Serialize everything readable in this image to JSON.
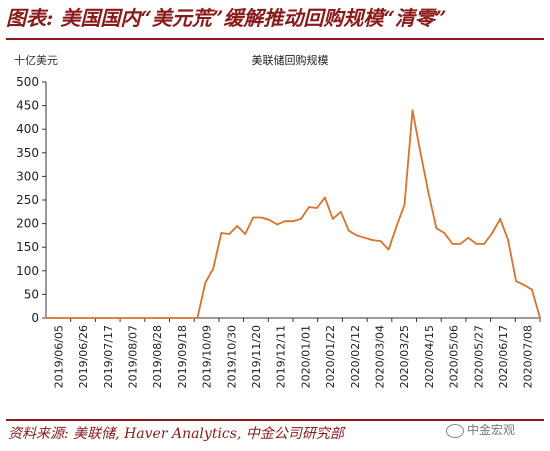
{
  "header": {
    "title": "图表: 美国国内“美元荒”缓解推动回购规模“清零”"
  },
  "footer": {
    "source": "资料来源: 美联储, Haver Analytics, 中金公司研究部",
    "watermark": "中金宏观"
  },
  "colors": {
    "line": "#d9732b",
    "title": "#8b1a1a",
    "axis": "#333333"
  },
  "chart_data": {
    "type": "line",
    "title": "美联储回购规模",
    "ylabel": "十亿美元",
    "xlabel": "",
    "ylim": [
      0,
      500
    ],
    "yticks": [
      0,
      50,
      100,
      150,
      200,
      250,
      300,
      350,
      400,
      450,
      500
    ],
    "grid": false,
    "xtick_labels": [
      "2019/06/05",
      "2019/06/26",
      "2019/07/17",
      "2019/08/07",
      "2019/08/28",
      "2019/09/18",
      "2019/10/09",
      "2019/10/30",
      "2019/11/20",
      "2019/12/11",
      "2020/01/01",
      "2020/01/22",
      "2020/02/12",
      "2020/03/04",
      "2020/03/25",
      "2020/04/15",
      "2020/05/06",
      "2020/05/27",
      "2020/06/17",
      "2020/07/08"
    ],
    "series": [
      {
        "values": [
          0,
          0,
          0,
          0,
          0,
          0,
          0,
          0,
          0,
          0,
          0,
          0,
          0,
          0,
          0,
          0,
          0,
          0,
          0,
          0,
          75,
          105,
          180,
          178,
          195,
          178,
          213,
          213,
          208,
          198,
          205,
          205,
          210,
          235,
          233,
          255,
          210,
          225,
          185,
          175,
          170,
          165,
          163,
          145,
          195,
          240,
          440,
          350,
          265,
          190,
          180,
          157,
          157,
          170,
          157,
          157,
          180,
          210,
          165,
          78,
          70,
          60,
          0
        ]
      }
    ]
  }
}
